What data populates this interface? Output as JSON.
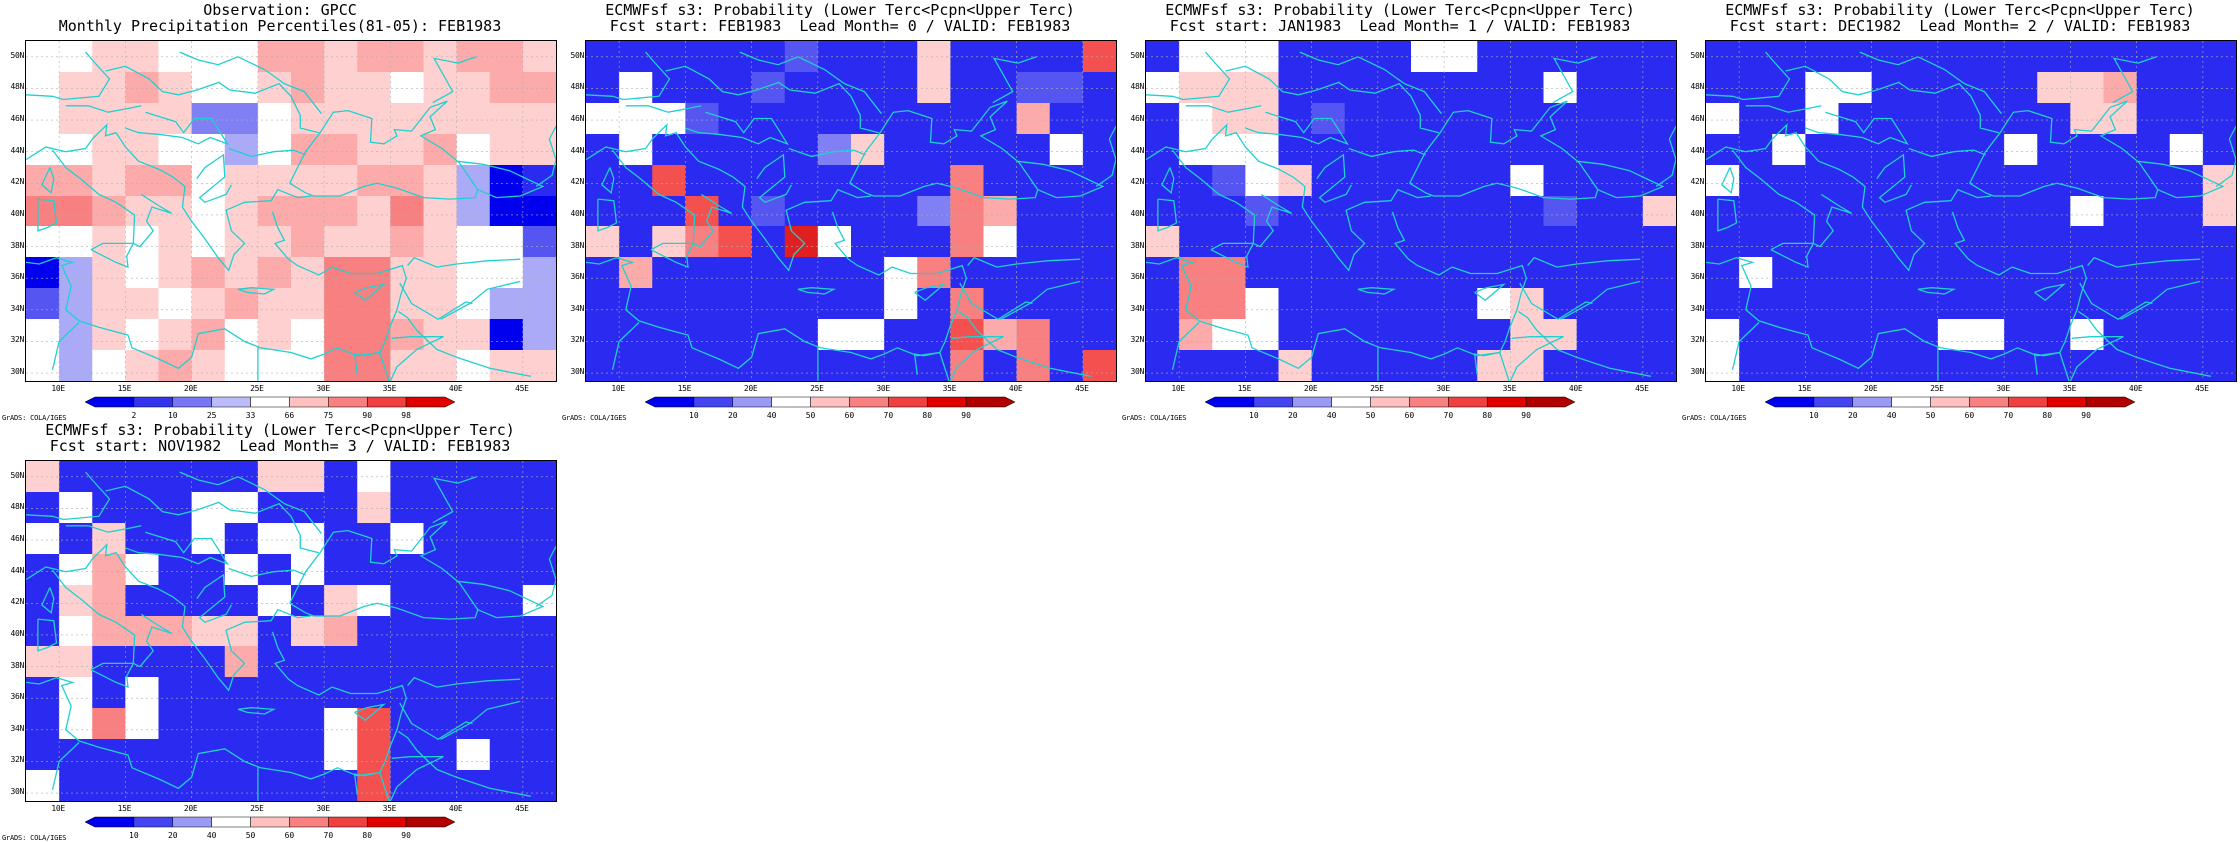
{
  "colors": {
    "coast": "#20d0d0",
    "grid": "#b0b0b0",
    "blue_scale": [
      "#0000ee",
      "#2a2af0",
      "#5555f2",
      "#8080f4",
      "#aaaaf6",
      "#d0d0fa"
    ],
    "red_scale": [
      "#ffd0d0",
      "#fcaaaa",
      "#f88080",
      "#f45050",
      "#e02020",
      "#b00000",
      "#8a0000"
    ]
  },
  "axes": {
    "lat_labels": [
      "50N",
      "48N",
      "46N",
      "44N",
      "42N",
      "40N",
      "38N",
      "36N",
      "34N",
      "32N",
      "30N"
    ],
    "lon_labels": [
      "10E",
      "15E",
      "20E",
      "25E",
      "30E",
      "35E",
      "40E",
      "45E"
    ],
    "lon_values": [
      10,
      15,
      20,
      25,
      30,
      35,
      40,
      45
    ],
    "lat_values": [
      50,
      48,
      46,
      44,
      42,
      40,
      38,
      36,
      34,
      32,
      30
    ],
    "lon_range": [
      7.5,
      47.5
    ],
    "lat_range": [
      29.5,
      51.0
    ]
  },
  "credit": "GrADS: COLA/IGES",
  "panels": [
    {
      "title1": "Observation: GPCC",
      "title2": "Monthly Precipitation Percentiles(81-05): FEB1983",
      "colorbar": {
        "labels": [
          "2",
          "10",
          "25",
          "33",
          "66",
          "75",
          "90",
          "98"
        ],
        "kind": "percentile"
      },
      "grid": [
        [
          0,
          0,
          1,
          1,
          0,
          0,
          0,
          2,
          2,
          1,
          2,
          2,
          1,
          2,
          2,
          1
        ],
        [
          0,
          1,
          1,
          2,
          1,
          0,
          0,
          1,
          2,
          1,
          1,
          0,
          1,
          1,
          2,
          2
        ],
        [
          0,
          1,
          1,
          1,
          1,
          -3,
          -3,
          0,
          1,
          1,
          1,
          1,
          1,
          1,
          1,
          1
        ],
        [
          0,
          0,
          1,
          1,
          0,
          0,
          -2,
          0,
          2,
          2,
          1,
          1,
          2,
          0,
          1,
          1
        ],
        [
          2,
          2,
          1,
          2,
          2,
          0,
          1,
          1,
          1,
          1,
          2,
          2,
          1,
          -2,
          -6,
          -5
        ],
        [
          3,
          3,
          2,
          1,
          1,
          0,
          1,
          2,
          2,
          2,
          1,
          3,
          1,
          -2,
          -6,
          -6
        ],
        [
          0,
          0,
          1,
          0,
          1,
          0,
          1,
          1,
          2,
          1,
          1,
          2,
          1,
          0,
          0,
          -4
        ],
        [
          -6,
          -2,
          1,
          0,
          1,
          2,
          1,
          2,
          1,
          3,
          3,
          1,
          1,
          0,
          0,
          -2
        ],
        [
          -4,
          -2,
          1,
          1,
          0,
          1,
          2,
          1,
          1,
          3,
          3,
          1,
          1,
          0,
          -2,
          -2
        ],
        [
          0,
          -2,
          1,
          0,
          1,
          2,
          0,
          1,
          0,
          3,
          3,
          2,
          1,
          1,
          -6,
          -2
        ],
        [
          0,
          -2,
          0,
          1,
          2,
          1,
          0,
          0,
          0,
          3,
          3,
          1,
          1,
          0,
          1,
          1
        ]
      ]
    },
    {
      "title1": "ECMWFsf s3: Probability (Lower Terc<Pcpn<Upper Terc)",
      "title2": "Fcst start: FEB1983  Lead Month= 0 / VALID: FEB1983",
      "colorbar": {
        "labels": [
          "10",
          "20",
          "40",
          "50",
          "60",
          "70",
          "80",
          "90"
        ],
        "kind": "probability"
      },
      "grid": [
        [
          -5,
          -5,
          -5,
          -5,
          -5,
          -5,
          -4,
          -5,
          -5,
          -5,
          1,
          -5,
          -5,
          -5,
          -5,
          4
        ],
        [
          -5,
          0,
          -5,
          -5,
          -5,
          -4,
          -5,
          -5,
          -5,
          -5,
          1,
          -5,
          -5,
          -4,
          -4,
          -5
        ],
        [
          0,
          0,
          0,
          -4,
          -5,
          -5,
          -5,
          -5,
          -5,
          -5,
          -5,
          -5,
          -5,
          2,
          -5,
          -5
        ],
        [
          -5,
          0,
          -5,
          -5,
          -5,
          -5,
          -5,
          -3,
          1,
          -5,
          -5,
          -5,
          -5,
          -5,
          0,
          -5
        ],
        [
          -5,
          -5,
          4,
          -5,
          -5,
          -5,
          -5,
          -5,
          -5,
          -5,
          -5,
          3,
          -5,
          -5,
          -5,
          -5
        ],
        [
          -5,
          -5,
          -5,
          4,
          -5,
          -4,
          -5,
          -5,
          -5,
          -5,
          -3,
          3,
          2,
          -5,
          -5,
          -5
        ],
        [
          1,
          -5,
          1,
          3,
          4,
          -5,
          5,
          0,
          -5,
          -5,
          -5,
          3,
          0,
          -5,
          -5,
          -5
        ],
        [
          -5,
          2,
          -5,
          -5,
          -5,
          -5,
          -5,
          -5,
          -5,
          0,
          3,
          -5,
          -5,
          -5,
          -5,
          -5
        ],
        [
          -5,
          -5,
          -5,
          -5,
          -5,
          -5,
          -5,
          -5,
          -5,
          0,
          -5,
          3,
          -5,
          -5,
          -5,
          -5
        ],
        [
          -5,
          -5,
          -5,
          -5,
          -5,
          -5,
          -5,
          0,
          0,
          -5,
          -5,
          4,
          2,
          3,
          -5,
          -5
        ],
        [
          -5,
          -5,
          -5,
          -5,
          -5,
          -5,
          -5,
          -5,
          -5,
          -5,
          -5,
          3,
          -5,
          3,
          -5,
          4
        ]
      ]
    },
    {
      "title1": "ECMWFsf s3: Probability (Lower Terc<Pcpn<Upper Terc)",
      "title2": "Fcst start: JAN1983  Lead Month= 1 / VALID: FEB1983",
      "colorbar": {
        "labels": [
          "10",
          "20",
          "40",
          "50",
          "60",
          "70",
          "80",
          "90"
        ],
        "kind": "probability"
      },
      "grid": [
        [
          -5,
          0,
          0,
          0,
          -5,
          -5,
          -5,
          -5,
          0,
          0,
          -5,
          -5,
          -5,
          -5,
          -5,
          -5
        ],
        [
          0,
          1,
          1,
          1,
          -5,
          -5,
          -5,
          -5,
          -5,
          -5,
          -5,
          -5,
          0,
          -5,
          -5,
          -5
        ],
        [
          -5,
          0,
          1,
          1,
          -5,
          -4,
          -5,
          -5,
          -5,
          -5,
          -5,
          -5,
          -5,
          -5,
          -5,
          -5
        ],
        [
          -5,
          0,
          0,
          0,
          -5,
          -5,
          -5,
          -5,
          -5,
          -5,
          -5,
          -5,
          -5,
          -5,
          -5,
          -5
        ],
        [
          -5,
          -5,
          -4,
          0,
          1,
          -5,
          -5,
          -5,
          -5,
          -5,
          -5,
          0,
          -5,
          -5,
          -5,
          -5
        ],
        [
          -5,
          -5,
          -5,
          -4,
          -5,
          -5,
          -5,
          -5,
          -5,
          -5,
          -5,
          -5,
          -4,
          -5,
          -5,
          1
        ],
        [
          1,
          -5,
          -5,
          -5,
          -5,
          -5,
          -5,
          -5,
          -5,
          -5,
          -5,
          -5,
          -5,
          -5,
          -5,
          -5
        ],
        [
          -5,
          3,
          3,
          -5,
          -5,
          -5,
          -5,
          -5,
          -5,
          -5,
          -5,
          -5,
          -5,
          -5,
          -5,
          -5
        ],
        [
          -5,
          3,
          3,
          0,
          -5,
          -5,
          -5,
          -5,
          -5,
          -5,
          0,
          1,
          -5,
          -5,
          -5,
          -5
        ],
        [
          -5,
          2,
          0,
          0,
          -5,
          -5,
          -5,
          -5,
          -5,
          -5,
          -5,
          1,
          1,
          -5,
          -5,
          -5
        ],
        [
          -5,
          -5,
          -5,
          -5,
          1,
          -5,
          -5,
          -5,
          -5,
          -5,
          1,
          1,
          -5,
          -5,
          -5,
          -5
        ]
      ]
    },
    {
      "title1": "ECMWFsf s3: Probability (Lower Terc<Pcpn<Upper Terc)",
      "title2": "Fcst start: DEC1982  Lead Month= 2 / VALID: FEB1983",
      "colorbar": {
        "labels": [
          "10",
          "20",
          "40",
          "50",
          "60",
          "70",
          "80",
          "90"
        ],
        "kind": "probability"
      },
      "grid": [
        [
          -5,
          -5,
          -5,
          -5,
          -5,
          -5,
          -5,
          -5,
          -5,
          -5,
          -5,
          -5,
          -5,
          -5,
          -5,
          -5
        ],
        [
          -5,
          -5,
          -5,
          0,
          0,
          -5,
          -5,
          -5,
          -5,
          -5,
          1,
          1,
          2,
          -5,
          -5,
          -5
        ],
        [
          0,
          -5,
          -5,
          0,
          -5,
          -5,
          -5,
          -5,
          -5,
          -5,
          -5,
          1,
          1,
          -5,
          -5,
          -5
        ],
        [
          -5,
          -5,
          0,
          -5,
          -5,
          -5,
          -5,
          -5,
          -5,
          0,
          -5,
          -5,
          -5,
          -5,
          0,
          -5
        ],
        [
          0,
          -5,
          -5,
          -5,
          -5,
          -5,
          -5,
          -5,
          -5,
          -5,
          -5,
          -5,
          -5,
          -5,
          -5,
          1
        ],
        [
          -5,
          -5,
          -5,
          -5,
          -5,
          -5,
          -5,
          -5,
          -5,
          -5,
          -5,
          0,
          -5,
          -5,
          -5,
          1
        ],
        [
          -5,
          -5,
          -5,
          -5,
          -5,
          -5,
          -5,
          -5,
          -5,
          -5,
          -5,
          -5,
          -5,
          -5,
          -5,
          -5
        ],
        [
          -5,
          0,
          -5,
          -5,
          -5,
          -5,
          -5,
          -5,
          -5,
          -5,
          -5,
          -5,
          -5,
          -5,
          -5,
          -5
        ],
        [
          -5,
          -5,
          -5,
          -5,
          -5,
          -5,
          -5,
          -5,
          -5,
          -5,
          -5,
          -5,
          -5,
          -5,
          -5,
          -5
        ],
        [
          0,
          -5,
          -5,
          -5,
          -5,
          -5,
          -5,
          0,
          0,
          -5,
          -5,
          0,
          -5,
          -5,
          -5,
          -5
        ],
        [
          0,
          -5,
          -5,
          -5,
          -5,
          -5,
          -5,
          -5,
          -5,
          -5,
          -5,
          -5,
          -5,
          -5,
          -5,
          -5
        ]
      ]
    },
    {
      "title1": "ECMWFsf s3: Probability (Lower Terc<Pcpn<Upper Terc)",
      "title2": "Fcst start: NOV1982  Lead Month= 3 / VALID: FEB1983",
      "colorbar": {
        "labels": [
          "10",
          "20",
          "40",
          "50",
          "60",
          "70",
          "80",
          "90"
        ],
        "kind": "probability"
      },
      "grid": [
        [
          1,
          -5,
          -5,
          -5,
          -5,
          -5,
          -5,
          1,
          1,
          -5,
          0,
          -5,
          -5,
          -5,
          -5,
          -5
        ],
        [
          -5,
          0,
          -5,
          -5,
          -5,
          0,
          0,
          -5,
          -5,
          -5,
          1,
          -5,
          -5,
          -5,
          -5,
          -5
        ],
        [
          0,
          -5,
          1,
          -5,
          -5,
          0,
          -5,
          0,
          0,
          -5,
          -5,
          0,
          -5,
          -5,
          -5,
          -5
        ],
        [
          -5,
          0,
          2,
          0,
          -5,
          -5,
          0,
          -5,
          0,
          -5,
          -5,
          -5,
          -5,
          -5,
          -5,
          -5
        ],
        [
          -5,
          1,
          2,
          -5,
          -5,
          -5,
          -5,
          0,
          -5,
          1,
          0,
          -5,
          -5,
          -5,
          -5,
          0
        ],
        [
          -5,
          0,
          2,
          2,
          2,
          1,
          1,
          -5,
          1,
          2,
          -5,
          -5,
          -5,
          -5,
          -5,
          -5
        ],
        [
          1,
          1,
          -5,
          -5,
          -5,
          -5,
          2,
          -5,
          -5,
          -5,
          -5,
          -5,
          -5,
          -5,
          -5,
          -5
        ],
        [
          -5,
          0,
          -5,
          0,
          -5,
          -5,
          -5,
          -5,
          -5,
          -5,
          -5,
          -5,
          -5,
          -5,
          -5,
          -5
        ],
        [
          -5,
          0,
          3,
          0,
          -5,
          -5,
          -5,
          -5,
          -5,
          0,
          4,
          -5,
          -5,
          -5,
          -5,
          -5
        ],
        [
          -5,
          -5,
          -5,
          -5,
          -5,
          -5,
          -5,
          -5,
          -5,
          0,
          4,
          -5,
          -5,
          0,
          -5,
          -5
        ],
        [
          0,
          -5,
          -5,
          -5,
          -5,
          -5,
          -5,
          -5,
          -5,
          -5,
          4,
          -5,
          -5,
          -5,
          -5,
          -5
        ]
      ]
    }
  ]
}
